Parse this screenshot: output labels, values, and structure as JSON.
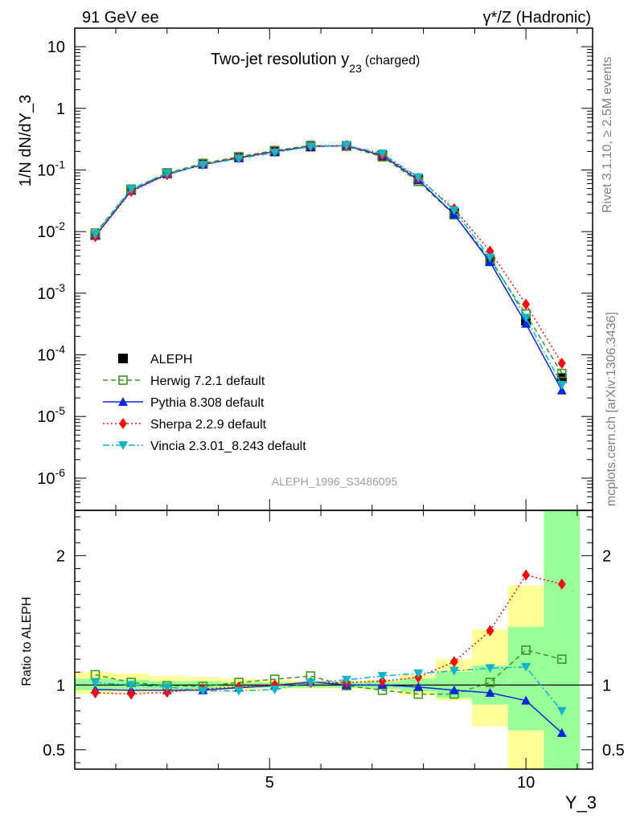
{
  "header": {
    "left": "91 GeV ee",
    "right": "γ*/Z (Hadronic)"
  },
  "side_labels": {
    "top": "Rivet 3.1.10, ≥ 2.5M events",
    "bottom": "mcplots.cern.ch [arXiv:1306.3436]"
  },
  "chart_data": [
    {
      "type": "line",
      "title": "Two-jet resolution y",
      "title_sub": "23",
      "title_suffix": "(charged)",
      "ylabel": "1/N dN/dY_3",
      "yscale": "log",
      "ylim": [
        3e-07,
        20
      ],
      "xlim": [
        1.2,
        11.3
      ],
      "ytick_labels": [
        "10",
        "1",
        "10^-1",
        "10^-2",
        "10^-3",
        "10^-4",
        "10^-5",
        "10^-6"
      ],
      "watermark": "ALEPH_1996_S3486095",
      "legend_position": "lower-left",
      "x": [
        1.6,
        2.3,
        3.0,
        3.7,
        4.4,
        5.1,
        5.8,
        6.5,
        7.2,
        7.9,
        8.6,
        9.3,
        10.0,
        10.7
      ],
      "series": [
        {
          "name": "ALEPH",
          "color": "#000000",
          "marker": "square-filled",
          "line": "none",
          "values": [
            0.0088,
            0.048,
            0.089,
            0.127,
            0.16,
            0.2,
            0.24,
            0.245,
            0.17,
            0.07,
            0.02,
            0.0034,
            0.00036,
            4.2e-05
          ]
        },
        {
          "name": "Herwig 7.2.1 default",
          "color": "#3a9a20",
          "marker": "square-open",
          "line": "dashed",
          "values": [
            0.0095,
            0.049,
            0.089,
            0.128,
            0.164,
            0.207,
            0.25,
            0.244,
            0.163,
            0.065,
            0.0187,
            0.0035,
            0.00046,
            5e-05
          ]
        },
        {
          "name": "Pythia 8.308 default",
          "color": "#0a28d8",
          "marker": "triangle-up",
          "line": "solid",
          "values": [
            0.0085,
            0.046,
            0.085,
            0.122,
            0.157,
            0.2,
            0.24,
            0.247,
            0.172,
            0.069,
            0.019,
            0.0032,
            0.00032,
            2.65e-05
          ]
        },
        {
          "name": "Sherpa 2.2.9 default",
          "color": "#ee1010",
          "marker": "diamond",
          "line": "dotted",
          "values": [
            0.0083,
            0.0447,
            0.084,
            0.124,
            0.158,
            0.2,
            0.245,
            0.248,
            0.175,
            0.074,
            0.0235,
            0.0048,
            0.00066,
            7.3e-05
          ]
        },
        {
          "name": "Vincia 2.3.01_8.243 default",
          "color": "#14b4c8",
          "marker": "triangle-down",
          "line": "dashdot",
          "values": [
            0.009,
            0.049,
            0.088,
            0.121,
            0.153,
            0.191,
            0.24,
            0.25,
            0.185,
            0.076,
            0.022,
            0.0038,
            0.0004,
            3.25e-05
          ]
        }
      ]
    },
    {
      "type": "line",
      "ylabel": "Ratio to ALEPH",
      "xlabel": "Y_3",
      "ylim": [
        0.35,
        2.35
      ],
      "xlim": [
        1.2,
        11.3
      ],
      "yticks": [
        0.5,
        1,
        2
      ],
      "ytick_labels": [
        "0.5",
        "1",
        "2"
      ],
      "xticks": [
        5,
        10
      ],
      "xtick_labels": [
        "5",
        "10"
      ],
      "x": [
        1.6,
        2.3,
        3.0,
        3.7,
        4.4,
        5.1,
        5.8,
        6.5,
        7.2,
        7.9,
        8.6,
        9.3,
        10.0,
        10.7
      ],
      "bands": {
        "edges": [
          1.2,
          1.95,
          2.65,
          3.35,
          4.05,
          4.75,
          5.45,
          6.15,
          6.85,
          7.55,
          8.25,
          8.95,
          9.65,
          10.35,
          11.05
        ],
        "inner_color": "#99ff99",
        "outer_color": "#ffff99",
        "inner": [
          [
            0.96,
            1.05
          ],
          [
            0.97,
            1.04
          ],
          [
            0.97,
            1.03
          ],
          [
            0.97,
            1.03
          ],
          [
            0.98,
            1.02
          ],
          [
            0.98,
            1.02
          ],
          [
            0.98,
            1.02
          ],
          [
            0.98,
            1.02
          ],
          [
            0.97,
            1.03
          ],
          [
            0.95,
            1.05
          ],
          [
            0.9,
            1.1
          ],
          [
            0.85,
            1.15
          ],
          [
            0.65,
            1.45
          ],
          [
            0.35,
            2.35
          ]
        ],
        "outer": [
          [
            0.93,
            1.1
          ],
          [
            0.94,
            1.09
          ],
          [
            0.95,
            1.07
          ],
          [
            0.95,
            1.06
          ],
          [
            0.96,
            1.05
          ],
          [
            0.97,
            1.04
          ],
          [
            0.97,
            1.03
          ],
          [
            0.97,
            1.03
          ],
          [
            0.96,
            1.04
          ],
          [
            0.92,
            1.08
          ],
          [
            0.88,
            1.2
          ],
          [
            0.68,
            1.43
          ],
          [
            0.35,
            1.77
          ],
          [
            0.35,
            2.35
          ]
        ]
      },
      "series": [
        {
          "name": "Herwig 7.2.1 default",
          "color": "#3a9a20",
          "marker": "square-open",
          "line": "dashed",
          "values": [
            1.08,
            1.02,
            0.995,
            0.99,
            1.02,
            1.045,
            1.07,
            0.995,
            0.96,
            0.93,
            0.93,
            1.02,
            1.27,
            1.2
          ]
        },
        {
          "name": "Pythia 8.308 default",
          "color": "#0a28d8",
          "marker": "triangle-up",
          "line": "solid",
          "values": [
            0.965,
            0.96,
            0.96,
            0.96,
            0.98,
            0.995,
            1.025,
            1.0,
            1.0,
            0.985,
            0.96,
            0.94,
            0.88,
            0.63
          ]
        },
        {
          "name": "Sherpa 2.2.9 default",
          "color": "#ee1010",
          "marker": "diamond",
          "line": "dotted",
          "values": [
            0.94,
            0.93,
            0.945,
            0.97,
            0.985,
            1.0,
            1.02,
            1.02,
            1.03,
            1.06,
            1.18,
            1.42,
            1.85,
            1.78
          ]
        },
        {
          "name": "Vincia 2.3.01_8.243 default",
          "color": "#14b4c8",
          "marker": "triangle-down",
          "line": "dashdot",
          "values": [
            1.02,
            1.0,
            0.985,
            0.955,
            0.955,
            0.965,
            1.02,
            1.04,
            1.07,
            1.09,
            1.11,
            1.13,
            1.14,
            0.8
          ]
        }
      ]
    }
  ]
}
